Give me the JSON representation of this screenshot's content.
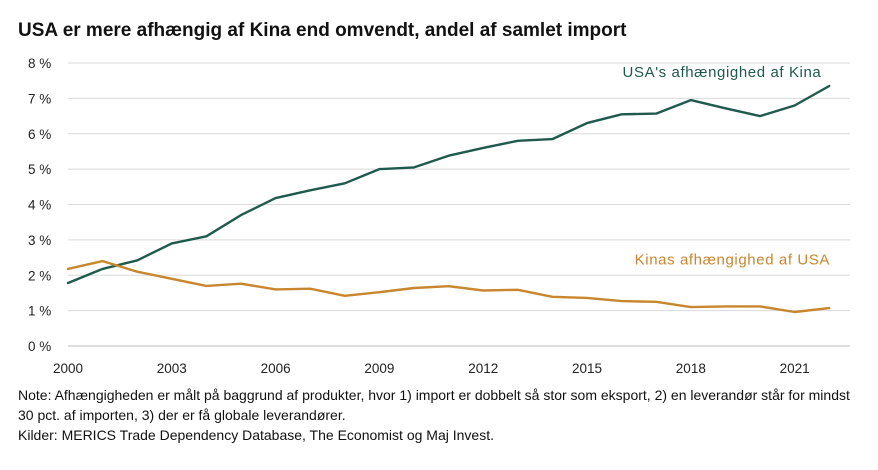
{
  "title": "USA er mere afhængig af Kina end omvendt, andel af samlet import",
  "note": "Note: Afhængigheden er målt på baggrund af produkter, hvor 1) import er dobbelt så stor som eksport, 2) en leverandør står for mindst 30 pct. af importen, 3) der er få globale leverandører.",
  "source": "Kilder: MERICS Trade Dependency Database, The Economist og Maj Invest.",
  "colors": {
    "usa_series": "#1f5a4c",
    "china_series": "#c8862e",
    "grid": "#d9d9d9",
    "text": "#111111"
  },
  "chart_data": {
    "type": "line",
    "title": "USA er mere afhængig af Kina end omvendt, andel af samlet import",
    "xlabel": "",
    "ylabel": "",
    "x": [
      2000,
      2001,
      2002,
      2003,
      2004,
      2005,
      2006,
      2007,
      2008,
      2009,
      2010,
      2011,
      2012,
      2013,
      2014,
      2015,
      2016,
      2017,
      2018,
      2019,
      2020,
      2021,
      2022
    ],
    "xlim": [
      2000,
      2022.6
    ],
    "ylim": [
      0,
      8
    ],
    "xticks": [
      {
        "value": 2000,
        "label": "2000"
      },
      {
        "value": 2003,
        "label": "2003"
      },
      {
        "value": 2006,
        "label": "2006"
      },
      {
        "value": 2009,
        "label": "2009"
      },
      {
        "value": 2012,
        "label": "2012"
      },
      {
        "value": 2015,
        "label": "2015"
      },
      {
        "value": 2018,
        "label": "2018"
      },
      {
        "value": 2021,
        "label": "2021"
      }
    ],
    "yticks": [
      {
        "value": 0,
        "label": "0 %"
      },
      {
        "value": 1,
        "label": "1 %"
      },
      {
        "value": 2,
        "label": "2 %"
      },
      {
        "value": 3,
        "label": "3 %"
      },
      {
        "value": 4,
        "label": "4 %"
      },
      {
        "value": 5,
        "label": "5 %"
      },
      {
        "value": 6,
        "label": "6 %"
      },
      {
        "value": 7,
        "label": "7 %"
      },
      {
        "value": 8,
        "label": "8 %"
      }
    ],
    "grid": "horizontal",
    "series": [
      {
        "name": "USA's afhængighed af Kina",
        "color": "#1f5a4c",
        "values": [
          1.78,
          2.18,
          2.42,
          2.9,
          3.1,
          3.7,
          4.18,
          4.4,
          4.6,
          5.0,
          5.05,
          5.38,
          5.6,
          5.8,
          5.85,
          6.3,
          6.55,
          6.57,
          6.95,
          6.72,
          6.5,
          6.8,
          7.35
        ]
      },
      {
        "name": "Kinas afhængighed af USA",
        "color": "#c8862e",
        "values": [
          2.18,
          2.4,
          2.1,
          1.9,
          1.7,
          1.76,
          1.6,
          1.62,
          1.42,
          1.52,
          1.64,
          1.69,
          1.57,
          1.59,
          1.39,
          1.36,
          1.27,
          1.25,
          1.1,
          1.12,
          1.12,
          0.96,
          1.07
        ]
      }
    ],
    "annotations": [
      {
        "text": "USA's afhængighed af Kina",
        "series": 0,
        "near_x": 2018.9,
        "near_y": 7.6
      },
      {
        "text": "Kinas afhængighed af USA",
        "series": 1,
        "near_x": 2019.2,
        "near_y": 2.3
      }
    ]
  }
}
